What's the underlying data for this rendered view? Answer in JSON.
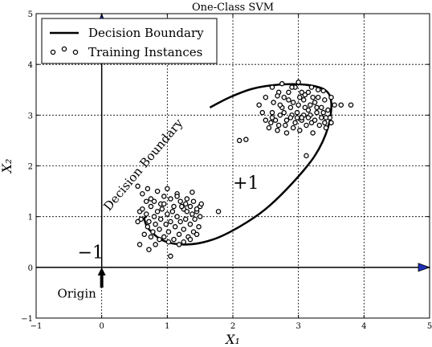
{
  "chart_data": {
    "type": "scatter",
    "title": "One-Class SVM",
    "xlabel": "X₁",
    "ylabel": "X₂",
    "xlim": [
      -1,
      5
    ],
    "ylim": [
      -1,
      5
    ],
    "xticks": [
      "−1",
      "0",
      "1",
      "2",
      "3",
      "4",
      "5"
    ],
    "yticks": [
      "−1",
      "0",
      "1",
      "2",
      "3",
      "4",
      "5"
    ],
    "grid": true,
    "legend": {
      "position": "top-left",
      "entries": [
        "Decision Boundary",
        "Training Instances"
      ]
    },
    "series": [
      {
        "name": "Decision Boundary",
        "type": "line",
        "points": [
          [
            1.65,
            3.15
          ],
          [
            1.95,
            3.35
          ],
          [
            2.3,
            3.52
          ],
          [
            2.7,
            3.6
          ],
          [
            3.1,
            3.6
          ],
          [
            3.4,
            3.5
          ],
          [
            3.5,
            3.25
          ],
          [
            3.45,
            2.75
          ],
          [
            3.25,
            2.2
          ],
          [
            2.9,
            1.65
          ],
          [
            2.5,
            1.15
          ],
          [
            2.1,
            0.8
          ],
          [
            1.7,
            0.55
          ],
          [
            1.3,
            0.45
          ],
          [
            0.95,
            0.52
          ],
          [
            0.72,
            0.75
          ],
          [
            0.65,
            0.95
          ],
          [
            0.68,
            1.0
          ]
        ]
      },
      {
        "name": "Training Instances",
        "type": "scatter",
        "points": [
          [
            0.55,
            1.6
          ],
          [
            0.62,
            1.45
          ],
          [
            0.7,
            1.55
          ],
          [
            0.75,
            1.35
          ],
          [
            0.8,
            1.3
          ],
          [
            0.85,
            1.5
          ],
          [
            0.9,
            1.25
          ],
          [
            0.95,
            1.4
          ],
          [
            1.0,
            1.55
          ],
          [
            1.05,
            1.35
          ],
          [
            1.1,
            1.2
          ],
          [
            1.15,
            1.45
          ],
          [
            1.2,
            1.3
          ],
          [
            1.25,
            1.15
          ],
          [
            1.3,
            1.35
          ],
          [
            1.35,
            1.2
          ],
          [
            1.4,
            1.3
          ],
          [
            1.45,
            1.1
          ],
          [
            1.5,
            1.2
          ],
          [
            1.38,
            1.48
          ],
          [
            0.58,
            1.1
          ],
          [
            0.6,
            0.95
          ],
          [
            0.62,
            1.15
          ],
          [
            0.68,
            1.05
          ],
          [
            0.7,
            0.8
          ],
          [
            0.72,
            0.9
          ],
          [
            0.75,
            1.2
          ],
          [
            0.78,
            0.7
          ],
          [
            0.8,
            1.0
          ],
          [
            0.82,
            0.85
          ],
          [
            0.85,
            1.1
          ],
          [
            0.88,
            0.75
          ],
          [
            0.9,
            0.95
          ],
          [
            0.92,
            1.15
          ],
          [
            0.95,
            0.6
          ],
          [
            0.98,
            0.85
          ],
          [
            1.0,
            1.05
          ],
          [
            1.02,
            0.7
          ],
          [
            1.05,
            0.9
          ],
          [
            1.08,
            1.1
          ],
          [
            1.1,
            0.55
          ],
          [
            1.12,
            0.8
          ],
          [
            1.15,
            1.0
          ],
          [
            1.18,
            0.65
          ],
          [
            1.2,
            0.9
          ],
          [
            1.22,
            1.2
          ],
          [
            1.25,
            0.75
          ],
          [
            1.28,
            0.95
          ],
          [
            1.3,
            1.1
          ],
          [
            1.32,
            0.6
          ],
          [
            1.35,
            0.85
          ],
          [
            1.38,
            1.05
          ],
          [
            1.4,
            0.7
          ],
          [
            1.42,
            0.95
          ],
          [
            1.45,
            1.15
          ],
          [
            1.48,
            0.8
          ],
          [
            1.5,
            1.0
          ],
          [
            1.35,
            0.55
          ],
          [
            1.02,
            0.5
          ],
          [
            0.88,
            0.55
          ],
          [
            0.65,
            0.65
          ],
          [
            0.58,
            0.45
          ],
          [
            0.72,
            0.35
          ],
          [
            1.05,
            0.22
          ],
          [
            1.25,
            0.5
          ],
          [
            0.75,
            0.6
          ],
          [
            0.95,
            1.25
          ],
          [
            1.15,
            1.4
          ],
          [
            0.68,
            1.3
          ],
          [
            0.55,
            0.9
          ],
          [
            1.28,
            1.25
          ],
          [
            1.18,
            0.45
          ],
          [
            0.82,
            0.45
          ],
          [
            1.45,
            0.65
          ],
          [
            1.52,
            1.25
          ],
          [
            1.78,
            1.1
          ],
          [
            2.1,
            2.5
          ],
          [
            2.2,
            2.52
          ],
          [
            2.4,
            3.2
          ],
          [
            2.5,
            3.35
          ],
          [
            2.6,
            3.05
          ],
          [
            2.65,
            2.9
          ],
          [
            2.7,
            3.45
          ],
          [
            2.75,
            3.15
          ],
          [
            2.8,
            2.8
          ],
          [
            2.85,
            3.3
          ],
          [
            2.9,
            3.0
          ],
          [
            2.95,
            3.55
          ],
          [
            3.0,
            3.2
          ],
          [
            3.05,
            2.9
          ],
          [
            3.1,
            3.4
          ],
          [
            3.15,
            3.1
          ],
          [
            3.2,
            2.85
          ],
          [
            3.25,
            3.25
          ],
          [
            3.3,
            3.5
          ],
          [
            3.35,
            2.95
          ],
          [
            3.4,
            3.3
          ],
          [
            3.45,
            3.1
          ],
          [
            2.5,
            2.9
          ],
          [
            2.55,
            2.75
          ],
          [
            2.62,
            3.25
          ],
          [
            2.68,
            2.7
          ],
          [
            2.72,
            3.0
          ],
          [
            2.78,
            3.35
          ],
          [
            2.82,
            2.65
          ],
          [
            2.88,
            3.15
          ],
          [
            2.92,
            2.75
          ],
          [
            2.98,
            3.05
          ],
          [
            3.02,
            2.7
          ],
          [
            3.08,
            3.3
          ],
          [
            3.12,
            2.8
          ],
          [
            3.18,
            3.0
          ],
          [
            3.22,
            2.65
          ],
          [
            3.28,
            3.15
          ],
          [
            3.32,
            2.8
          ],
          [
            3.38,
            3.05
          ],
          [
            3.42,
            2.75
          ],
          [
            3.48,
            2.95
          ],
          [
            2.6,
            3.55
          ],
          [
            2.75,
            3.62
          ],
          [
            2.9,
            3.55
          ],
          [
            3.05,
            3.45
          ],
          [
            3.2,
            3.55
          ],
          [
            3.38,
            3.48
          ],
          [
            3.5,
            3.35
          ],
          [
            3.55,
            3.2
          ],
          [
            3.5,
            2.85
          ],
          [
            3.65,
            3.2
          ],
          [
            3.8,
            3.2
          ],
          [
            3.12,
            2.2
          ],
          [
            2.85,
            3.45
          ],
          [
            3.0,
            3.65
          ],
          [
            3.15,
            3.45
          ],
          [
            2.45,
            3.05
          ],
          [
            2.7,
            2.8
          ],
          [
            3.25,
            2.9
          ],
          [
            3.3,
            3.35
          ],
          [
            2.95,
            2.85
          ],
          [
            3.08,
            3.0
          ],
          [
            2.88,
            2.95
          ],
          [
            3.18,
            3.2
          ],
          [
            2.78,
            3.05
          ],
          [
            3.02,
            3.35
          ],
          [
            2.58,
            2.85
          ],
          [
            3.42,
            2.95
          ],
          [
            3.35,
            3.15
          ],
          [
            2.68,
            3.38
          ],
          [
            3.1,
            3.15
          ],
          [
            2.92,
            3.25
          ],
          [
            3.28,
            3.05
          ],
          [
            2.82,
            2.9
          ],
          [
            3.4,
            2.85
          ],
          [
            2.98,
            2.95
          ],
          [
            2.72,
            3.2
          ],
          [
            3.22,
            3.35
          ],
          [
            3.05,
            2.95
          ],
          [
            2.6,
            2.95
          ],
          [
            3.15,
            2.95
          ]
        ]
      }
    ],
    "annotations": [
      {
        "text": "Decision Boundary",
        "x": 0.68,
        "y": 1.97,
        "rotation": -50
      },
      {
        "text": "+1",
        "x": 2.2,
        "y": 1.55
      },
      {
        "text": "−1",
        "x": -0.17,
        "y": 0.18
      },
      {
        "text": "Origin",
        "x": -0.38,
        "y": -0.6
      }
    ],
    "arrows": [
      {
        "from": [
          0,
          -0.4
        ],
        "to": [
          0,
          0
        ]
      },
      {
        "from": [
          0,
          0
        ],
        "to": [
          0,
          5
        ],
        "kind": "axis"
      },
      {
        "from": [
          -1,
          0
        ],
        "to": [
          5,
          0
        ],
        "kind": "axis"
      }
    ]
  }
}
